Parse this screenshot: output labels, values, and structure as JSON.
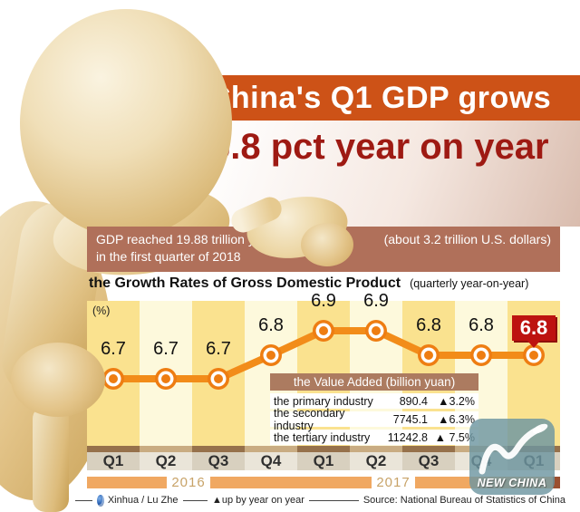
{
  "header": {
    "title": "China's Q1 GDP grows",
    "subtitle": "6.8 pct year on year"
  },
  "gdp_banner": {
    "line1": "GDP reached 19.88 trillion yuan",
    "line2": "in the first quarter of 2018",
    "right": "(about 3.2 trillion U.S. dollars)"
  },
  "chart_data": {
    "type": "line",
    "title": "the Growth Rates of Gross Domestic Product",
    "subtitle": "(quarterly year-on-year)",
    "unit_label": "(%)",
    "categories": [
      "Q1",
      "Q2",
      "Q3",
      "Q4",
      "Q1",
      "Q2",
      "Q3",
      "Q4",
      "Q1"
    ],
    "values": [
      6.7,
      6.7,
      6.7,
      6.8,
      6.9,
      6.9,
      6.8,
      6.8,
      6.8
    ],
    "highlight_index": 8,
    "ylim": [
      6.6,
      7.0
    ],
    "year_labels": [
      "2016",
      "2017"
    ],
    "legend_position": "none",
    "grid": false,
    "line_color": "#f28c19",
    "marker_color": "#ee7d12",
    "highlight_color": "#bd1310"
  },
  "value_table": {
    "title": "the Value Added (billion yuan)",
    "rows": [
      {
        "name": "the primary industry",
        "value": "890.4",
        "change": "▲3.2%"
      },
      {
        "name": "the secondary industry",
        "value": "7745.1",
        "change": "▲6.3%"
      },
      {
        "name": "the tertiary industry",
        "value": "11242.8",
        "change": "▲ 7.5%"
      }
    ]
  },
  "footer": {
    "credit": "Xinhua / Lu Zhe",
    "legend": "▲up by year on year",
    "source": "Source: National Bureau of Statistics of China"
  },
  "watermark": {
    "text": "NEW CHINA"
  },
  "colors": {
    "title_bar": "#cd5217",
    "subtitle_text": "#9e1a13",
    "banner": "#b0705a",
    "stripe_dark": "#fae28f",
    "stripe_light": "#fdf9dc",
    "table_header": "#ac7b60",
    "year_bar": "#f0a862",
    "badge": "#bd1310"
  }
}
